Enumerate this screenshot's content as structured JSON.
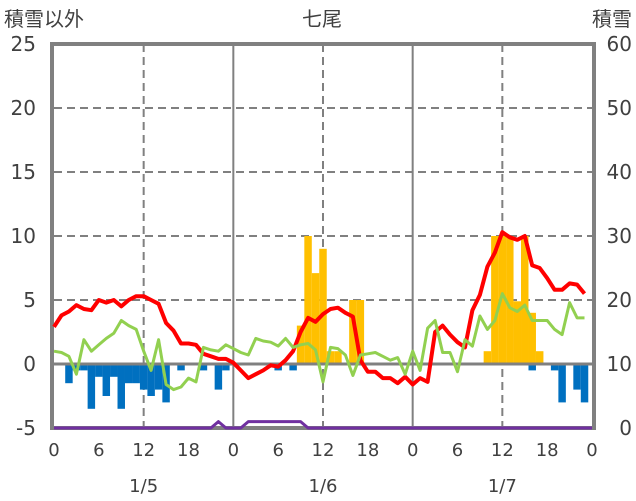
{
  "chart_data": {
    "type": "bar",
    "title": "七尾",
    "ylabel_left": "積雪以外",
    "ylabel_right": "積雪",
    "ylim_left": [
      -5,
      25
    ],
    "ylim_right": [
      0,
      60
    ],
    "yticks_left": [
      "25",
      "20",
      "15",
      "10",
      "5",
      "0",
      "-5"
    ],
    "yticks_right": [
      "60",
      "50",
      "40",
      "30",
      "20",
      "10",
      "0"
    ],
    "xlim_hours": [
      0,
      72
    ],
    "xtick_labels": [
      "0",
      "6",
      "12",
      "18",
      "0",
      "6",
      "12",
      "18",
      "0",
      "6",
      "12",
      "18",
      "0"
    ],
    "date_labels": [
      "1/5",
      "1/6",
      "1/7"
    ],
    "grid": true,
    "colors": {
      "precip_pos": "#FFC000",
      "precip_neg": "#0070C0",
      "red_line": "#FF0000",
      "green_line": "#92D050",
      "snow_depth": "#7030A0",
      "axis": "#808080"
    },
    "series": [
      {
        "name": "orange_bars",
        "axis": "left",
        "type": "bar",
        "points": {
          "33": 3,
          "34": 10,
          "35": 7.1,
          "36": 9,
          "37": 1,
          "38": 1,
          "40": 5,
          "41": 5,
          "58": 1,
          "59": 10,
          "60": 10,
          "61": 10,
          "62": 4.9,
          "63": 10,
          "64": 4,
          "65": 1
        }
      },
      {
        "name": "blue_bars",
        "axis": "left",
        "type": "bar",
        "points": {
          "2": -1.5,
          "3": -0.5,
          "4": -0.5,
          "5": -3.5,
          "6": -1,
          "7": -2.5,
          "8": -1,
          "9": -3.5,
          "10": -1.5,
          "11": -1.5,
          "12": -2,
          "13": -2.5,
          "14": -2,
          "15": -3,
          "17": -0.5,
          "20": -0.5,
          "22": -2,
          "23": -0.5,
          "30": -0.5,
          "32": -0.5,
          "64": -0.5,
          "67": -0.5,
          "68": -3,
          "70": -2,
          "71": -3
        }
      },
      {
        "name": "red_line",
        "axis": "left",
        "type": "line",
        "values": [
          2.9,
          3.8,
          4.1,
          4.6,
          4.3,
          4.2,
          5.0,
          4.8,
          5.0,
          4.5,
          5.0,
          5.3,
          5.3,
          5.0,
          4.7,
          3.2,
          2.6,
          1.6,
          1.6,
          1.5,
          0.8,
          0.6,
          0.4,
          0.4,
          0.1,
          -0.5,
          -1.1,
          -0.8,
          -0.5,
          -0.1,
          -0.2,
          0.3,
          1.0,
          2.5,
          3.6,
          3.3,
          3.9,
          4.3,
          4.4,
          4.0,
          3.7,
          0.3,
          -0.6,
          -0.6,
          -1.1,
          -1.1,
          -1.5,
          -1.0,
          -1.6,
          -1.1,
          -1.4,
          2.5,
          3.0,
          2.3,
          1.7,
          1.3,
          4.2,
          5.4,
          7.6,
          8.7,
          10.3,
          9.9,
          9.7,
          10.0,
          7.7,
          7.5,
          6.7,
          5.8,
          5.8,
          6.3,
          6.2,
          5.5
        ]
      },
      {
        "name": "green_line",
        "axis": "left",
        "type": "line",
        "values": [
          1.0,
          0.9,
          0.6,
          -0.8,
          1.9,
          1.0,
          1.5,
          2.0,
          2.4,
          3.4,
          3.0,
          2.7,
          1.0,
          -0.5,
          1.9,
          -1.6,
          -2.0,
          -1.8,
          -1.1,
          -1.4,
          1.3,
          1.1,
          1.0,
          1.5,
          1.2,
          0.9,
          0.7,
          2.0,
          1.8,
          1.7,
          1.4,
          2.0,
          1.3,
          1.5,
          1.6,
          1.1,
          -1.4,
          1.3,
          1.2,
          0.7,
          -0.9,
          0.7,
          0.8,
          0.9,
          0.6,
          0.3,
          0.5,
          -0.8,
          1.0,
          -0.5,
          2.8,
          3.4,
          0.9,
          0.9,
          -0.6,
          1.9,
          1.4,
          3.75,
          2.7,
          3.4,
          5.5,
          4.4,
          4.1,
          4.6,
          3.4,
          3.4,
          3.4,
          2.7,
          2.3,
          4.8,
          3.6,
          3.6
        ]
      },
      {
        "name": "snow_depth",
        "axis": "right",
        "type": "line",
        "values": [
          0,
          0,
          0,
          0,
          0,
          0,
          0,
          0,
          0,
          0,
          0,
          0,
          0,
          0,
          0,
          0,
          0,
          0,
          0,
          0,
          0,
          0,
          1,
          0,
          0,
          0,
          1,
          1,
          1,
          1,
          1,
          1,
          1,
          1,
          0,
          0,
          0,
          0,
          0,
          0,
          0,
          0,
          0,
          0,
          0,
          0,
          0,
          0,
          0,
          0,
          0,
          0,
          0,
          0,
          0,
          0,
          0,
          0,
          0,
          0,
          0,
          0,
          0,
          0,
          0,
          0,
          0,
          0,
          0,
          0,
          0,
          0,
          0
        ]
      }
    ]
  }
}
